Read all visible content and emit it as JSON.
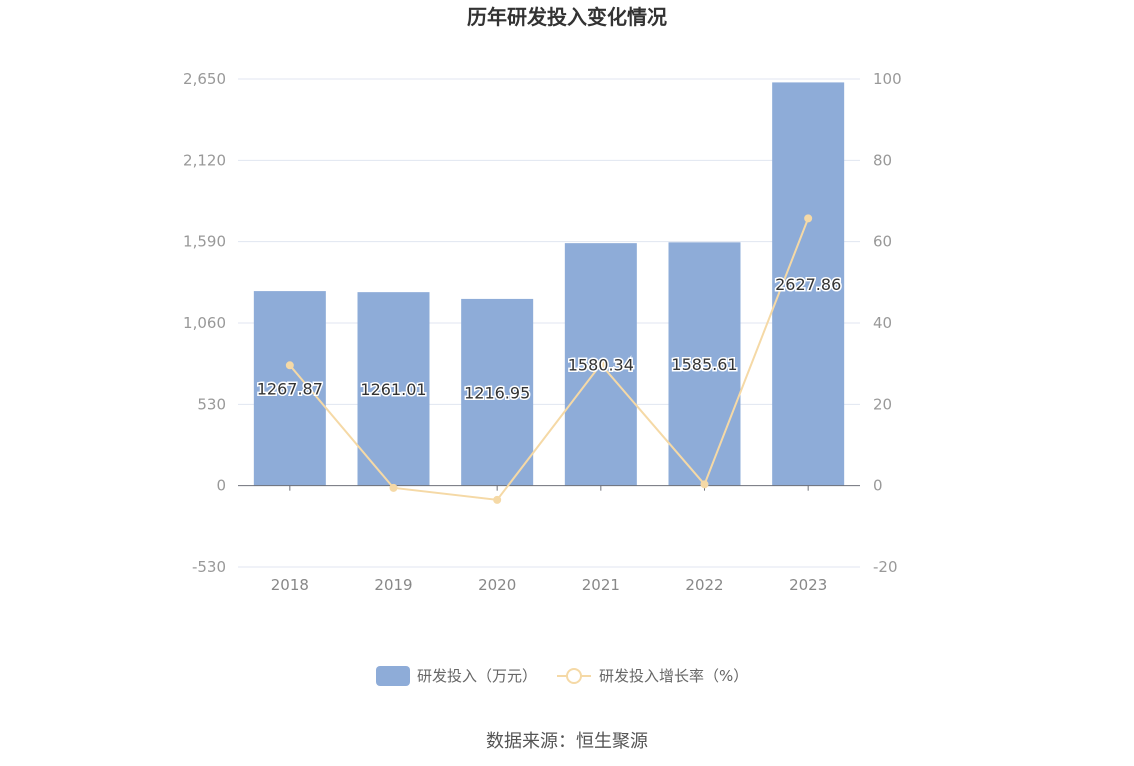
{
  "chart_data": {
    "type": "bar",
    "title": "历年研发投入变化情况",
    "categories": [
      "2018",
      "2019",
      "2020",
      "2021",
      "2022",
      "2023"
    ],
    "series": [
      {
        "name": "研发投入（万元）",
        "type": "bar",
        "axis": "left",
        "values": [
          1267.87,
          1261.01,
          1216.95,
          1580.34,
          1585.61,
          2627.86
        ],
        "labels": [
          "1267.87",
          "1261.01",
          "1216.95",
          "1580.34",
          "1585.61",
          "2627.86"
        ],
        "color": "#8eacd8"
      },
      {
        "name": "研发投入增长率（%）",
        "type": "line",
        "axis": "right",
        "values": [
          29.6,
          -0.54,
          -3.49,
          29.86,
          0.33,
          65.73
        ],
        "color": "#f5d9a6"
      }
    ],
    "y_left": {
      "ylim": [
        -530,
        2650
      ],
      "ticks": [
        "-530",
        "0",
        "530",
        "1,060",
        "1,590",
        "2,120",
        "2,650"
      ]
    },
    "y_right": {
      "ylim": [
        -20,
        100
      ],
      "ticks": [
        "-20",
        "0",
        "20",
        "40",
        "60",
        "80",
        "100"
      ]
    },
    "grid": true,
    "legend_position": "bottom-center"
  },
  "source": "数据来源：恒生聚源"
}
